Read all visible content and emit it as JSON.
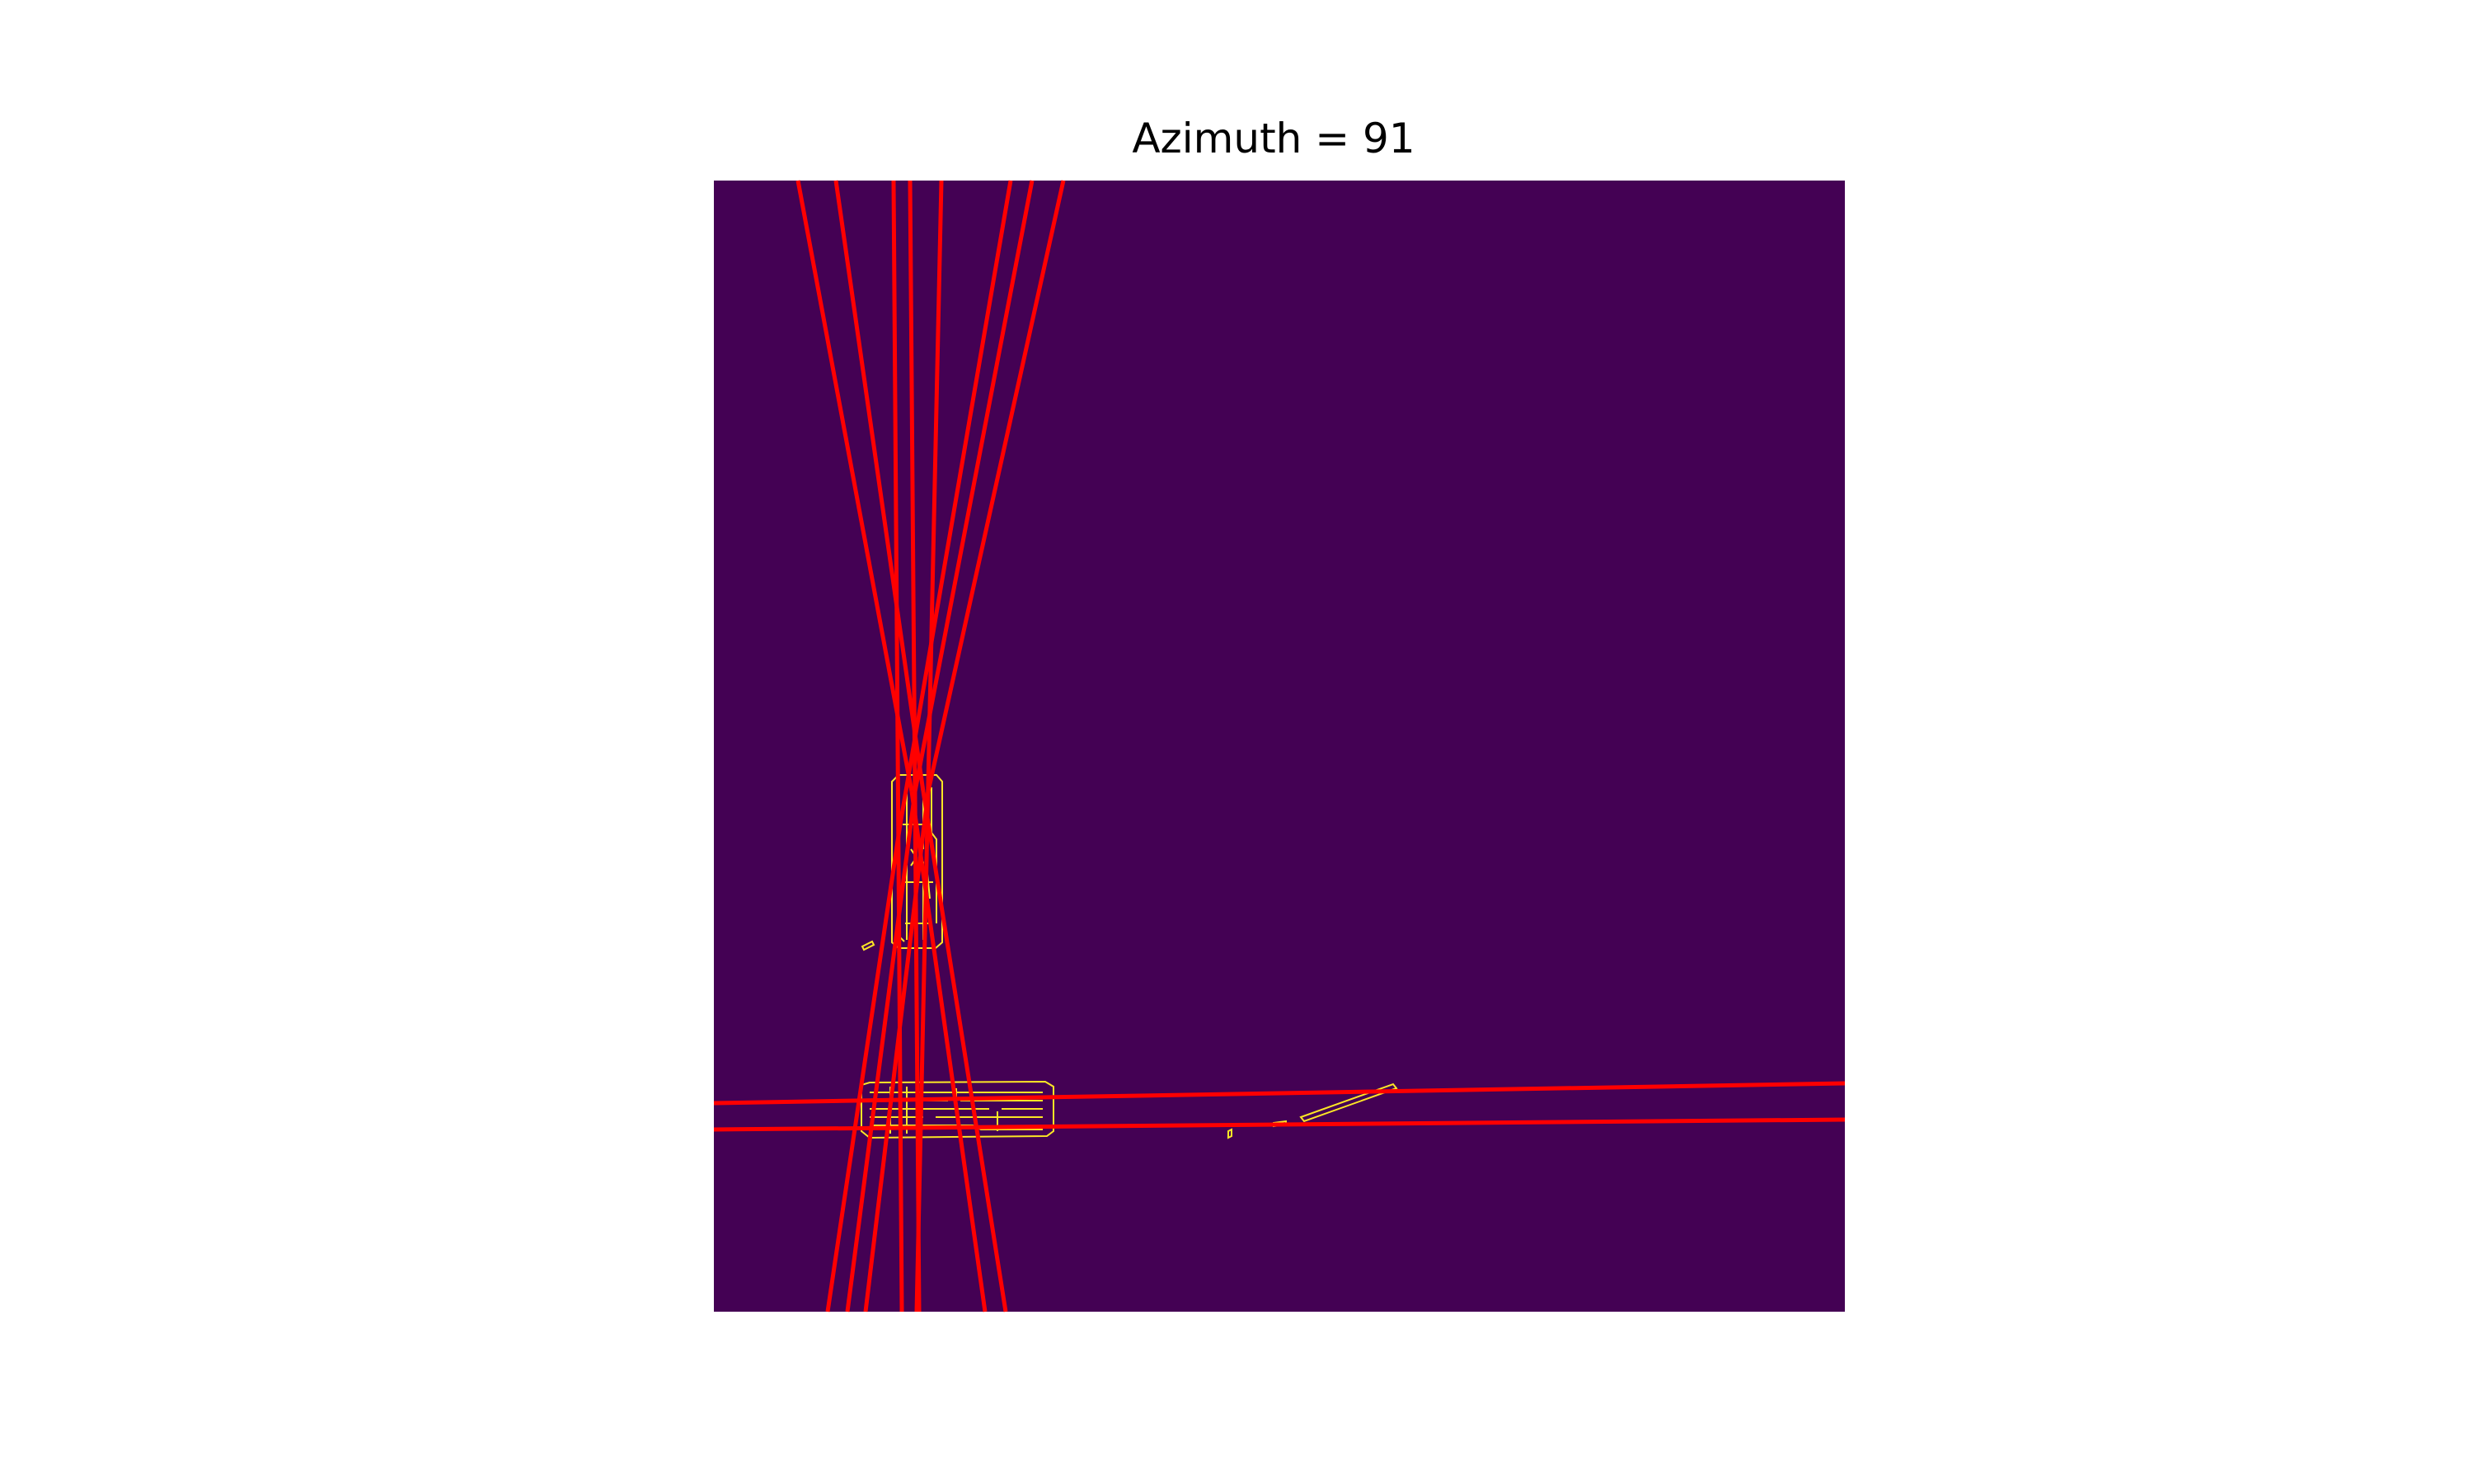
{
  "figure": {
    "title": "Azimuth = 91"
  },
  "colors": {
    "background": "#440154",
    "edges": "#fde725",
    "hough_lines": "#ff0000",
    "page": "#ffffff"
  },
  "image": {
    "description_icons": [
      "edge-map",
      "hough-lines"
    ]
  }
}
